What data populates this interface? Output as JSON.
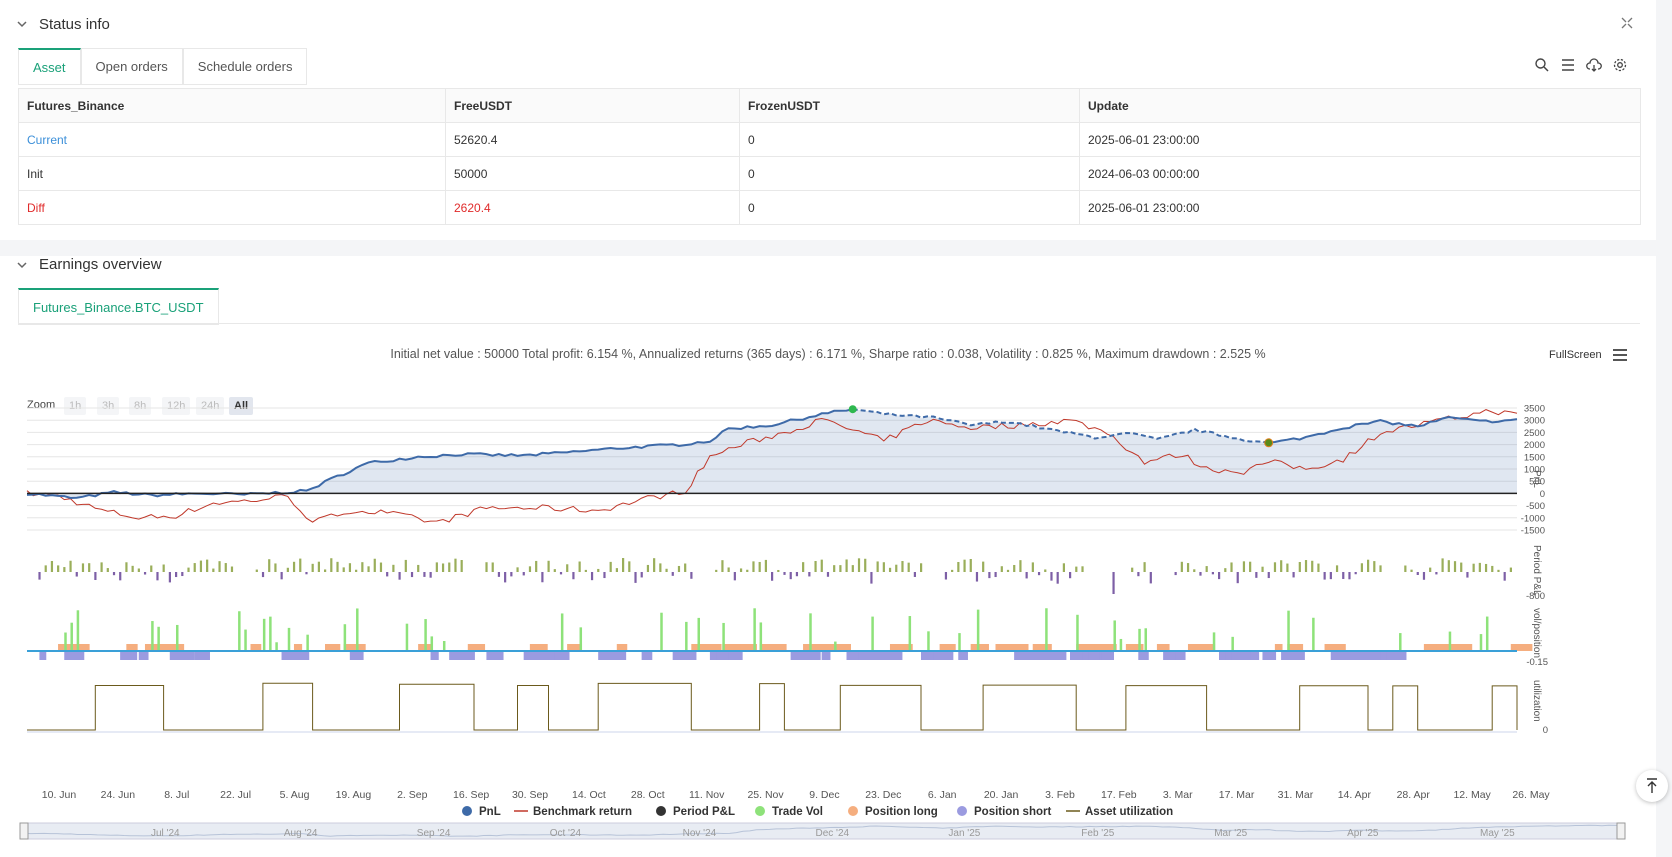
{
  "status": {
    "title": "Status info",
    "tabs": [
      "Asset",
      "Open orders",
      "Schedule orders"
    ],
    "table": {
      "headers": [
        "Futures_Binance",
        "FreeUSDT",
        "FrozenUSDT",
        "Update"
      ],
      "rows": [
        {
          "label": "Current",
          "free": "52620.4",
          "frozen": "0",
          "update": "2025-06-01 23:00:00"
        },
        {
          "label": "Init",
          "free": "50000",
          "frozen": "0",
          "update": "2024-06-03 00:00:00"
        },
        {
          "label": "Diff",
          "free": "2620.4",
          "frozen": "0",
          "update": "2025-06-01 23:00:00"
        }
      ]
    },
    "icons": [
      "search-icon",
      "list-icon",
      "cloud-download-icon",
      "gear-icon"
    ]
  },
  "earnings": {
    "title": "Earnings overview",
    "tab": "Futures_Binance.BTC_USDT",
    "summary": "Initial net value : 50000 Total profit: 6.154 %, Annualized returns (365 days) : 6.171 %, Sharpe ratio : 0.038, Volatility : 0.825 %, Maximum drawdown : 2.525 %",
    "fullscreen_label": "FullScreen",
    "zoom_label": "Zoom",
    "zoom_options": [
      "1h",
      "3h",
      "8h",
      "12h",
      "24h",
      "All"
    ],
    "zoom_selected": "All"
  },
  "colors": {
    "accent": "#1aa179",
    "pnl": "#3e6aa8",
    "benchmark": "#c0392b",
    "period_pos": "#9aae5a",
    "period_neg": "#7d5fa6",
    "trade_vol": "#8ee27a",
    "pos_long": "#f5ae7f",
    "pos_short": "#9b9be0",
    "utilization": "#6b5a1c"
  },
  "chart_data": {
    "type": "line",
    "x_ticks": [
      "10. Jun",
      "24. Jun",
      "8. Jul",
      "22. Jul",
      "5. Aug",
      "19. Aug",
      "2. Sep",
      "16. Sep",
      "30. Sep",
      "14. Oct",
      "28. Oct",
      "11. Nov",
      "25. Nov",
      "9. Dec",
      "23. Dec",
      "6. Jan",
      "20. Jan",
      "3. Feb",
      "17. Feb",
      "3. Mar",
      "17. Mar",
      "31. Mar",
      "14. Apr",
      "28. Apr",
      "12. May",
      "26. May"
    ],
    "navigator_ticks": [
      "Jul '24",
      "Aug '24",
      "Sep '24",
      "Oct '24",
      "Nov '24",
      "Dec '24",
      "Jan '25",
      "Feb '25",
      "Mar '25",
      "Apr '25",
      "May '25"
    ],
    "pnl_axis": {
      "label": "PnL",
      "ticks": [
        "3500",
        "3000",
        "2500",
        "2000",
        "1500",
        "1000",
        "500",
        "0",
        "-500",
        "-1000",
        "-1500"
      ],
      "range": [
        -1500,
        3500
      ]
    },
    "period_axis": {
      "label": "Period P&L",
      "ticks": [
        "-800"
      ]
    },
    "vol_axis": {
      "label": "vol/position",
      "ticks": [
        "-0.15"
      ]
    },
    "util_axis": {
      "label": "utilization",
      "ticks": [
        "0"
      ]
    },
    "series": [
      {
        "name": "PnL",
        "anchors": [
          [
            0,
            0
          ],
          [
            8,
            -200
          ],
          [
            14,
            50
          ],
          [
            20,
            -80
          ],
          [
            28,
            0
          ],
          [
            35,
            -50
          ],
          [
            45,
            100
          ],
          [
            50,
            700
          ],
          [
            55,
            1250
          ],
          [
            63,
            1500
          ],
          [
            70,
            1600
          ],
          [
            80,
            1550
          ],
          [
            88,
            1700
          ],
          [
            95,
            1850
          ],
          [
            105,
            2000
          ],
          [
            110,
            2150
          ],
          [
            113,
            2650
          ],
          [
            120,
            2800
          ],
          [
            128,
            3250
          ],
          [
            133,
            3450
          ],
          [
            138,
            3250
          ],
          [
            146,
            3100
          ],
          [
            152,
            2800
          ],
          [
            158,
            2950
          ],
          [
            165,
            2600
          ],
          [
            172,
            2300
          ],
          [
            178,
            2450
          ],
          [
            182,
            2200
          ],
          [
            188,
            2600
          ],
          [
            194,
            2300
          ],
          [
            200,
            2050
          ],
          [
            206,
            2300
          ],
          [
            212,
            2700
          ],
          [
            218,
            2950
          ],
          [
            224,
            2750
          ],
          [
            229,
            3100
          ],
          [
            234,
            2950
          ],
          [
            240,
            3000
          ]
        ]
      },
      {
        "name": "Benchmark return",
        "anchors": [
          [
            0,
            0
          ],
          [
            5,
            -100
          ],
          [
            12,
            -700
          ],
          [
            18,
            -1000
          ],
          [
            24,
            -900
          ],
          [
            30,
            -400
          ],
          [
            36,
            -300
          ],
          [
            42,
            -100
          ],
          [
            46,
            -1200
          ],
          [
            52,
            -700
          ],
          [
            58,
            -800
          ],
          [
            66,
            -1200
          ],
          [
            74,
            -600
          ],
          [
            84,
            -600
          ],
          [
            92,
            -700
          ],
          [
            100,
            -200
          ],
          [
            106,
            100
          ],
          [
            110,
            1500
          ],
          [
            115,
            2000
          ],
          [
            122,
            2500
          ],
          [
            128,
            3000
          ],
          [
            133,
            2600
          ],
          [
            138,
            2150
          ],
          [
            145,
            3000
          ],
          [
            152,
            2700
          ],
          [
            160,
            2800
          ],
          [
            168,
            3000
          ],
          [
            174,
            2500
          ],
          [
            180,
            1300
          ],
          [
            186,
            1600
          ],
          [
            190,
            1000
          ],
          [
            196,
            900
          ],
          [
            200,
            1300
          ],
          [
            206,
            1000
          ],
          [
            212,
            1400
          ],
          [
            218,
            2500
          ],
          [
            224,
            2800
          ],
          [
            230,
            3100
          ],
          [
            236,
            3400
          ],
          [
            240,
            3200
          ]
        ]
      },
      {
        "name": "Period P&L"
      },
      {
        "name": "Trade Vol"
      },
      {
        "name": "Position long"
      },
      {
        "name": "Position short"
      },
      {
        "name": "Asset utilization"
      }
    ]
  }
}
